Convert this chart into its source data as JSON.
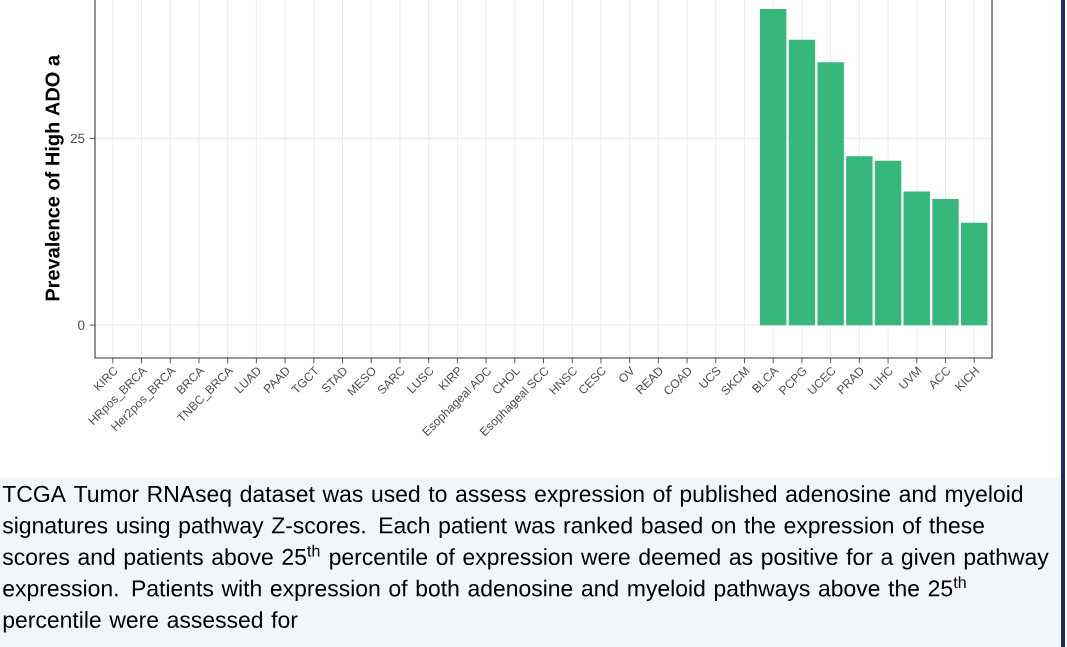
{
  "chart_data": {
    "type": "bar",
    "ylabel": "Prevalence of High ADO a",
    "categories": [
      "KIRC",
      "HRpos_BRCA",
      "Her2pos_BRCA",
      "BRCA",
      "TNBC_BRCA",
      "LUAD",
      "PAAD",
      "TGCT",
      "STAD",
      "MESO",
      "SARC",
      "LUSC",
      "KIRP",
      "Esophageal ADC",
      "CHOL",
      "Esophageal SCC",
      "HNSC",
      "CESC",
      "OV",
      "READ",
      "COAD",
      "UCS",
      "SKCM",
      "BLCA",
      "PCPG",
      "UCEC",
      "PRAD",
      "LIHC",
      "UVM",
      "ACC",
      "KICH"
    ],
    "values": [
      null,
      null,
      null,
      null,
      null,
      null,
      null,
      null,
      null,
      null,
      null,
      null,
      null,
      null,
      null,
      null,
      null,
      null,
      null,
      null,
      null,
      null,
      null,
      42.3,
      38.2,
      35.2,
      22.6,
      22.0,
      17.9,
      16.9,
      13.7
    ],
    "color": "#36b87b",
    "ylim": [
      -4.4,
      43.7
    ],
    "yticks": [
      0,
      25
    ],
    "grid": true,
    "annotations": [
      "TCGA Tumor RNAseq dataset was used to assess expression of published adenosine and myeloid signatures using pathway Z-scores. Each patient was ranked based on the expression of these scores and patients above 25$^{th}$ percentile of expression were deemed as positive for a given pathway expression. Patients with expression of both adenosine and myeloid pathways above the 25$^{th}$ percentile were assessed for"
    ]
  }
}
